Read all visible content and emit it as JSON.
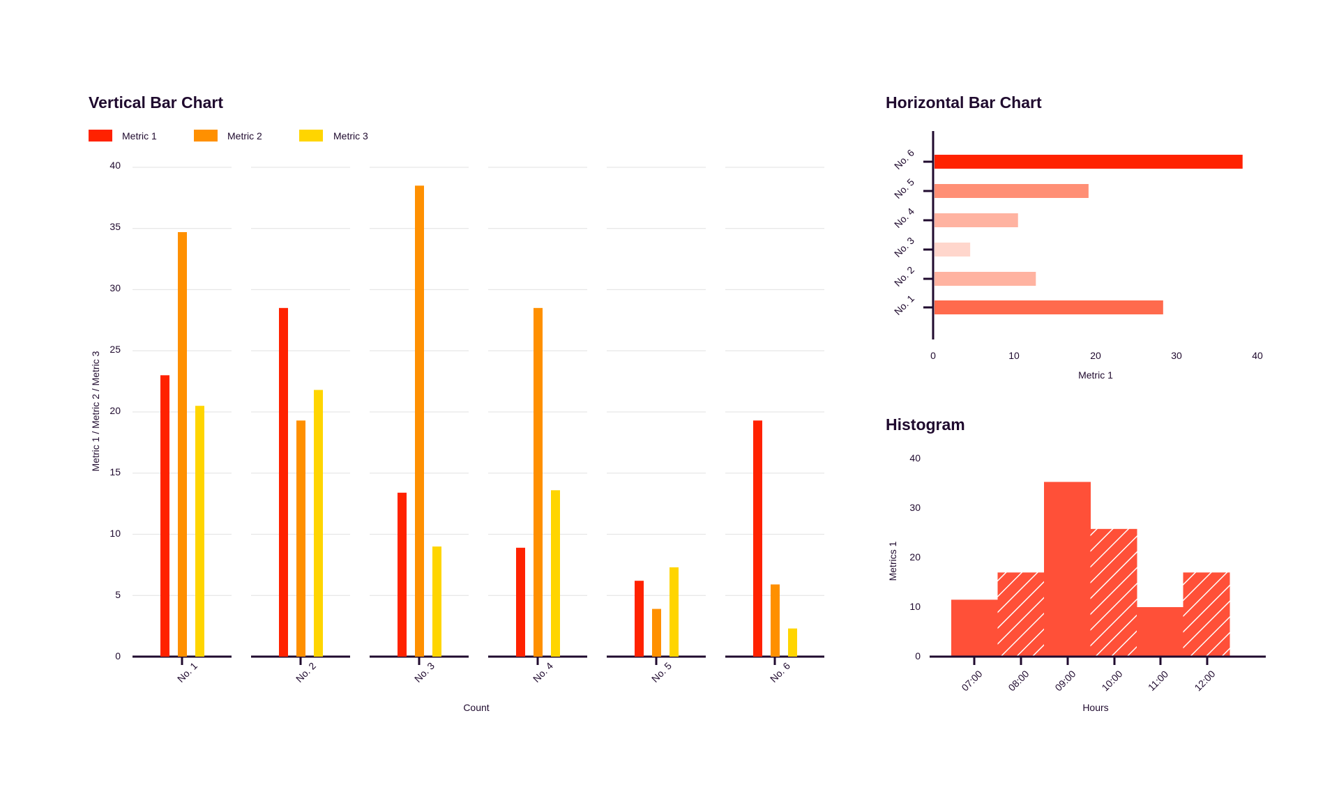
{
  "colors": {
    "metric1": "#ff2200",
    "metric2": "#ff9000",
    "metric3": "#ffd500",
    "axis": "#1f0a2e",
    "histogram": "#ff5038"
  },
  "chart_data": [
    {
      "type": "bar",
      "title": "Vertical Bar Chart",
      "categories": [
        "No. 1",
        "No. 2",
        "No. 3",
        "No. 4",
        "No. 5",
        "No. 6"
      ],
      "series": [
        {
          "name": "Metric 1",
          "values": [
            23,
            28.5,
            13.4,
            8.9,
            6.2,
            19.3
          ]
        },
        {
          "name": "Metric 2",
          "values": [
            34.7,
            19.3,
            38.5,
            28.5,
            3.9,
            5.9
          ]
        },
        {
          "name": "Metric 3",
          "values": [
            20.5,
            21.8,
            9.0,
            13.6,
            7.3,
            2.3
          ]
        }
      ],
      "xlabel": "Count",
      "ylabel": "Metric 1 / Metric 2 / Metric 3",
      "ylim": [
        0,
        40
      ],
      "yticks": [
        "0",
        "5",
        "10",
        "15",
        "20",
        "25",
        "30",
        "35",
        "40"
      ],
      "grid": true,
      "legend": "top-left"
    },
    {
      "type": "bar",
      "orientation": "horizontal",
      "title": "Horizontal Bar Chart",
      "categories": [
        "No. 1",
        "No. 2",
        "No. 3",
        "No. 4",
        "No. 5",
        "No. 6"
      ],
      "values": [
        28.2,
        12.5,
        4.4,
        10.3,
        19.0,
        38.0
      ],
      "bar_colors": [
        "#ff6a4d",
        "#ffb3a1",
        "#ffd6cc",
        "#ffb3a1",
        "#ff8f75",
        "#ff2200"
      ],
      "xlabel": "Metric 1",
      "xlim": [
        0,
        40
      ],
      "xticks": [
        "0",
        "10",
        "20",
        "30",
        "40"
      ],
      "grid": false
    },
    {
      "type": "bar",
      "subtype": "histogram",
      "title": "Histogram",
      "categories": [
        "07:00",
        "08:00",
        "09:00",
        "10:00",
        "11:00",
        "12:00"
      ],
      "values": [
        11.5,
        17,
        35.3,
        25.8,
        10,
        17
      ],
      "hatched": [
        false,
        true,
        false,
        true,
        false,
        true
      ],
      "xlabel": "Hours",
      "ylabel": "Metrics 1",
      "ylim": [
        0,
        40
      ],
      "yticks": [
        "0",
        "10",
        "20",
        "30",
        "40"
      ],
      "grid": false
    }
  ]
}
